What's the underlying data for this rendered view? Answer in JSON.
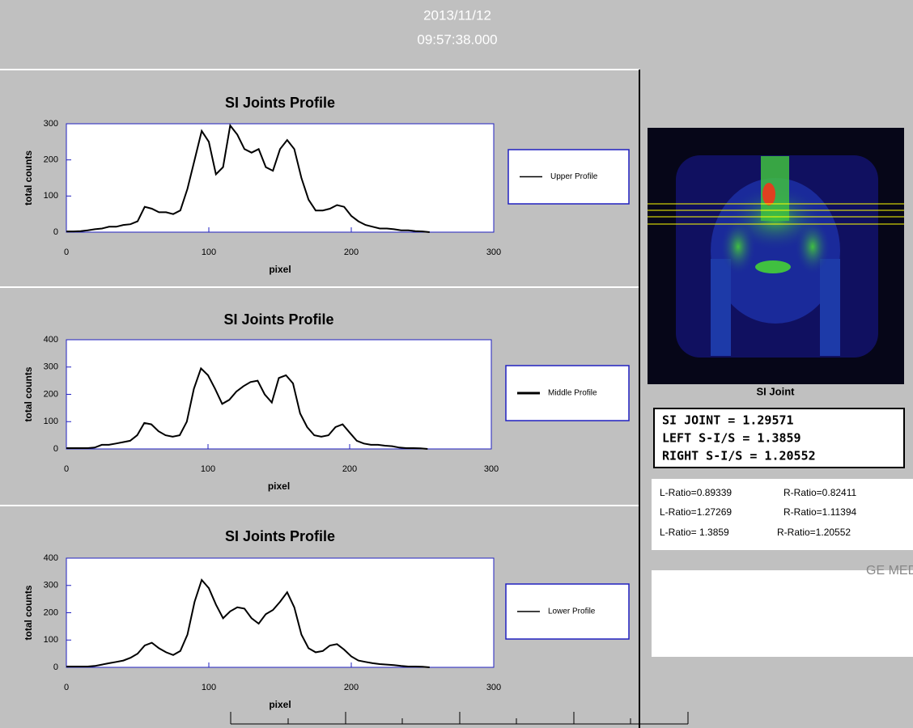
{
  "header": {
    "date": "2013/11/12",
    "time": "09:57:38.000"
  },
  "chart_data": [
    {
      "type": "line",
      "title": "SI Joints Profile",
      "x_label": "pixel",
      "y_label": "total counts",
      "xlim": [
        0,
        300
      ],
      "xticks": [
        0,
        100,
        200,
        300
      ],
      "ylim": [
        0,
        300
      ],
      "yticks": [
        0,
        100,
        200,
        300
      ],
      "x": [
        0,
        5,
        10,
        15,
        20,
        25,
        30,
        35,
        40,
        45,
        50,
        55,
        60,
        65,
        70,
        75,
        80,
        85,
        90,
        95,
        100,
        105,
        110,
        115,
        120,
        125,
        130,
        135,
        140,
        145,
        150,
        155,
        160,
        165,
        170,
        175,
        180,
        185,
        190,
        195,
        200,
        205,
        210,
        215,
        220,
        225,
        230,
        235,
        240,
        245,
        250,
        255
      ],
      "series": [
        {
          "name": "Upper Profile",
          "color": "#000000",
          "values": [
            2,
            2,
            3,
            5,
            8,
            10,
            15,
            15,
            20,
            22,
            30,
            70,
            65,
            55,
            55,
            50,
            60,
            120,
            200,
            280,
            250,
            160,
            180,
            295,
            270,
            230,
            220,
            230,
            180,
            170,
            230,
            255,
            230,
            150,
            90,
            60,
            60,
            65,
            75,
            70,
            45,
            30,
            20,
            15,
            10,
            10,
            8,
            5,
            5,
            3,
            2,
            0
          ]
        }
      ]
    },
    {
      "type": "line",
      "title": "SI Joints Profile",
      "x_label": "pixel",
      "y_label": "total counts",
      "xlim": [
        0,
        300
      ],
      "xticks": [
        0,
        100,
        200,
        300
      ],
      "ylim": [
        0,
        400
      ],
      "yticks": [
        0,
        100,
        200,
        300,
        400
      ],
      "x": [
        0,
        5,
        10,
        15,
        20,
        25,
        30,
        35,
        40,
        45,
        50,
        55,
        60,
        65,
        70,
        75,
        80,
        85,
        90,
        95,
        100,
        105,
        110,
        115,
        120,
        125,
        130,
        135,
        140,
        145,
        150,
        155,
        160,
        165,
        170,
        175,
        180,
        185,
        190,
        195,
        200,
        205,
        210,
        215,
        220,
        225,
        230,
        235,
        240,
        245,
        250,
        255
      ],
      "series": [
        {
          "name": "Middle Profile",
          "color": "#000000",
          "values": [
            3,
            3,
            3,
            3,
            5,
            15,
            15,
            20,
            25,
            30,
            50,
            95,
            90,
            65,
            50,
            45,
            50,
            100,
            220,
            295,
            270,
            220,
            165,
            180,
            210,
            230,
            245,
            250,
            200,
            170,
            260,
            270,
            240,
            130,
            80,
            50,
            45,
            50,
            80,
            90,
            60,
            30,
            20,
            15,
            15,
            12,
            10,
            5,
            3,
            3,
            2,
            0
          ]
        }
      ]
    },
    {
      "type": "line",
      "title": "SI Joints Profile",
      "x_label": "pixel",
      "y_label": "total counts",
      "xlim": [
        0,
        300
      ],
      "xticks": [
        0,
        100,
        200,
        300
      ],
      "ylim": [
        0,
        400
      ],
      "yticks": [
        0,
        100,
        200,
        300,
        400
      ],
      "x": [
        0,
        5,
        10,
        15,
        20,
        25,
        30,
        35,
        40,
        45,
        50,
        55,
        60,
        65,
        70,
        75,
        80,
        85,
        90,
        95,
        100,
        105,
        110,
        115,
        120,
        125,
        130,
        135,
        140,
        145,
        150,
        155,
        160,
        165,
        170,
        175,
        180,
        185,
        190,
        195,
        200,
        205,
        210,
        215,
        220,
        225,
        230,
        235,
        240,
        245,
        250,
        255
      ],
      "series": [
        {
          "name": "Lower Profile",
          "color": "#000000",
          "values": [
            3,
            3,
            3,
            3,
            5,
            10,
            15,
            20,
            25,
            35,
            50,
            80,
            90,
            70,
            55,
            45,
            60,
            120,
            240,
            320,
            290,
            230,
            180,
            205,
            220,
            215,
            180,
            160,
            195,
            210,
            240,
            275,
            220,
            120,
            70,
            55,
            60,
            80,
            85,
            65,
            40,
            25,
            20,
            15,
            12,
            10,
            8,
            5,
            3,
            3,
            2,
            0
          ]
        }
      ]
    }
  ],
  "image": {
    "label": "SI Joint"
  },
  "results": {
    "lines": [
      "SI JOINT = 1.29571",
      "LEFT S-I/S = 1.3859",
      "RIGHT S-I/S = 1.20552"
    ]
  },
  "ratios": {
    "rows": [
      [
        "L-Ratio=0.89339",
        "R-Ratio=0.82411"
      ],
      [
        "L-Ratio=1.27269",
        "R-Ratio=1.11394"
      ],
      [
        "L-Ratio= 1.3859",
        "R-Ratio=1.20552"
      ]
    ]
  },
  "footer": {
    "brand": "GE MED"
  }
}
